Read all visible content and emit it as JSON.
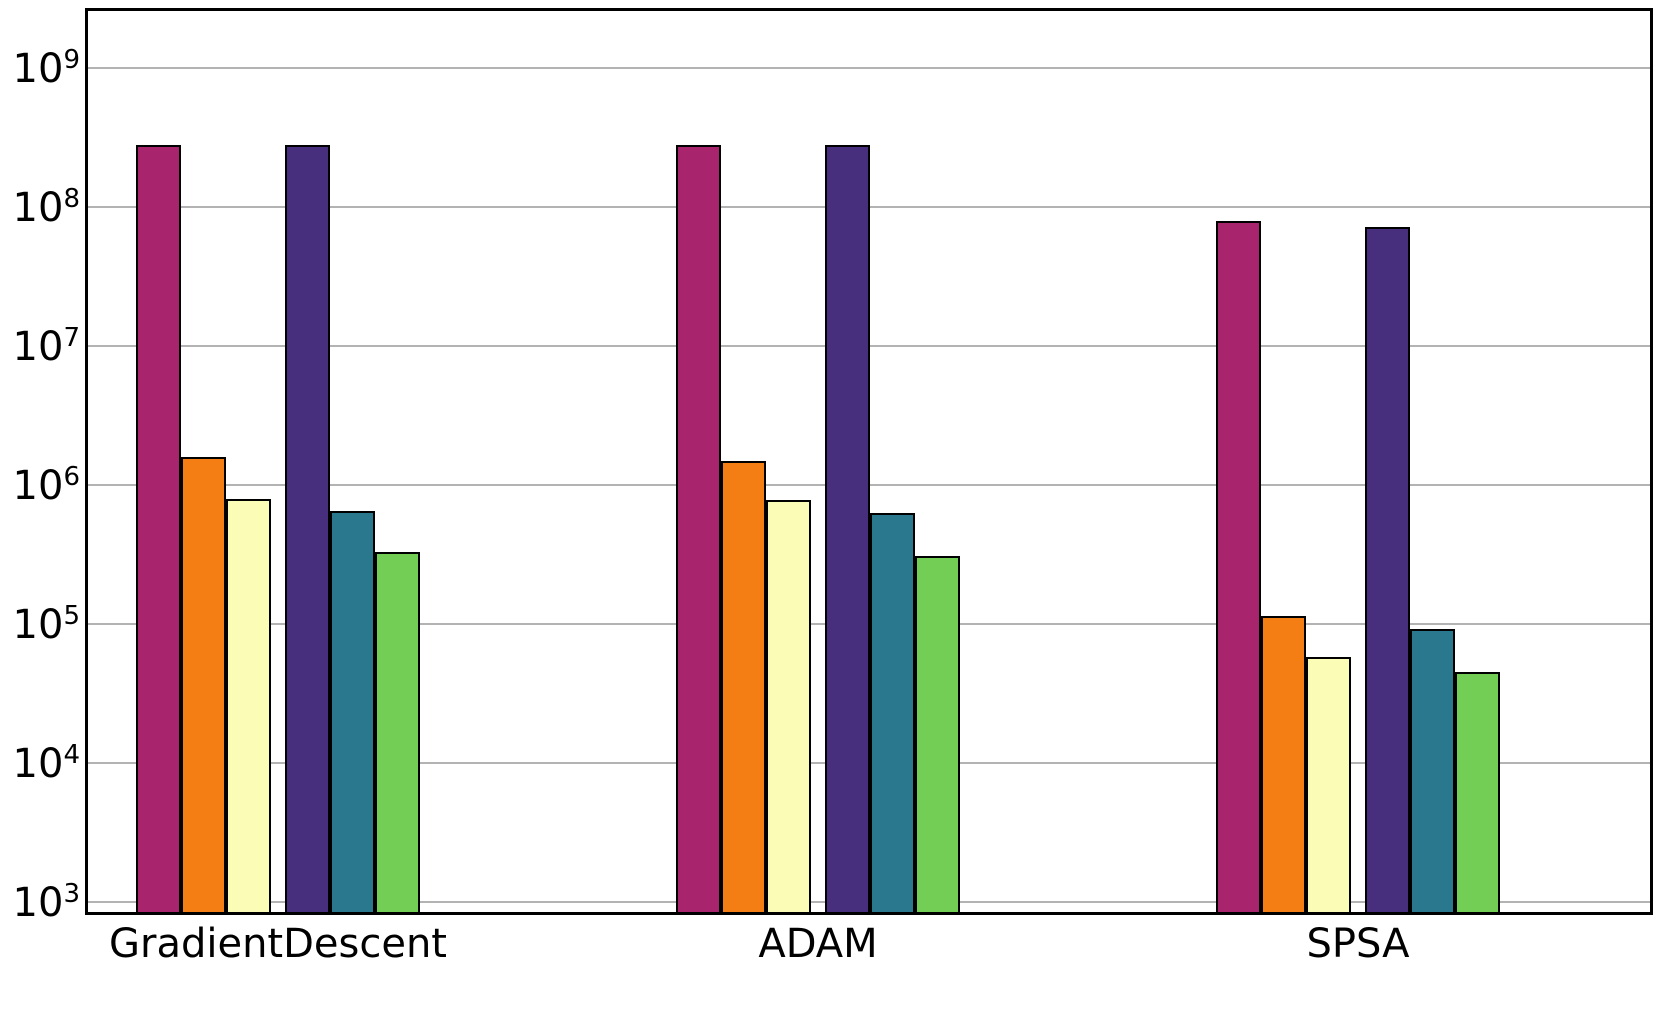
{
  "figure": {
    "background": "#ffffff"
  },
  "chart_data": {
    "type": "bar",
    "yscale": "log",
    "title": "",
    "xlabel": "",
    "ylabel": "",
    "categories": [
      "GradientDescent",
      "ADAM",
      "SPSA"
    ],
    "series": [
      {
        "name": "magenta",
        "color": "#A8256E",
        "values": [
          280000000.0,
          280000000.0,
          80000000.0
        ]
      },
      {
        "name": "orange",
        "color": "#F57E14",
        "values": [
          1600000.0,
          1500000.0,
          115000.0
        ]
      },
      {
        "name": "pale-yellow",
        "color": "#FBFCB5",
        "values": [
          800000.0,
          780000.0,
          58000.0
        ]
      },
      {
        "name": "dark-purple",
        "color": "#472F7D",
        "values": [
          280000000.0,
          280000000.0,
          72000000.0
        ]
      },
      {
        "name": "teal",
        "color": "#2A788E",
        "values": [
          650000.0,
          630000.0,
          92000.0
        ]
      },
      {
        "name": "green",
        "color": "#72CE55",
        "values": [
          330000.0,
          310000.0,
          45000.0
        ]
      }
    ],
    "ylim": [
      851,
      2570000000.0
    ],
    "ytick_base": "10",
    "ytick_exponents": [
      3,
      4,
      5,
      6,
      7,
      8,
      9
    ],
    "grid": true,
    "legend": false,
    "bar_edge_color": "#000000",
    "gridline_color": "#b3b3b3"
  }
}
